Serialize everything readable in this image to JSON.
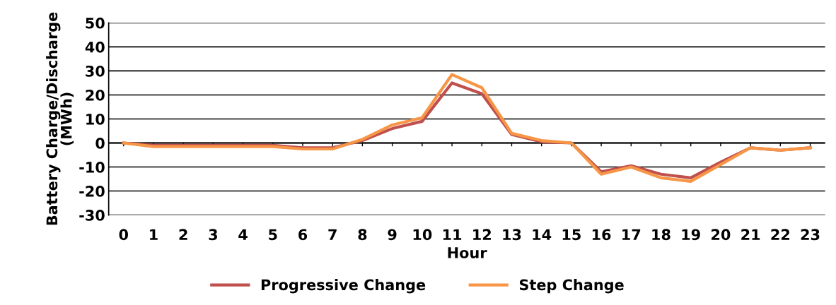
{
  "chart_data": {
    "type": "line",
    "xlabel": "Hour",
    "ylabel": "Battery Charge/Discharge\n(MWh)",
    "categories": [
      "0",
      "1",
      "2",
      "3",
      "4",
      "5",
      "6",
      "7",
      "8",
      "9",
      "10",
      "11",
      "12",
      "13",
      "14",
      "15",
      "16",
      "17",
      "18",
      "19",
      "20",
      "21",
      "22",
      "23"
    ],
    "series": [
      {
        "name": "Progressive Change",
        "color": "#c0504d",
        "values": [
          0,
          -1,
          -1,
          -1,
          -1,
          -1,
          -2,
          -2,
          1,
          6,
          9,
          25,
          20.5,
          3.5,
          0.5,
          0,
          -12,
          -9.5,
          -13,
          -14.5,
          -8,
          -2,
          -3,
          -2
        ]
      },
      {
        "name": "Step Change",
        "color": "#f79646",
        "values": [
          0,
          -1.5,
          -1.5,
          -1.5,
          -1.5,
          -1.5,
          -2.5,
          -2.5,
          1.5,
          7.5,
          10.5,
          28.5,
          23,
          4,
          1,
          0,
          -13,
          -10,
          -14.5,
          -16,
          -9,
          -2,
          -3,
          -2
        ]
      }
    ],
    "ylim": [
      -30,
      50
    ],
    "yticks": [
      -30,
      -20,
      -10,
      0,
      10,
      20,
      30,
      40,
      50
    ],
    "grid": "y",
    "legend": "bottom",
    "marker": "none",
    "line_style": "solid"
  }
}
